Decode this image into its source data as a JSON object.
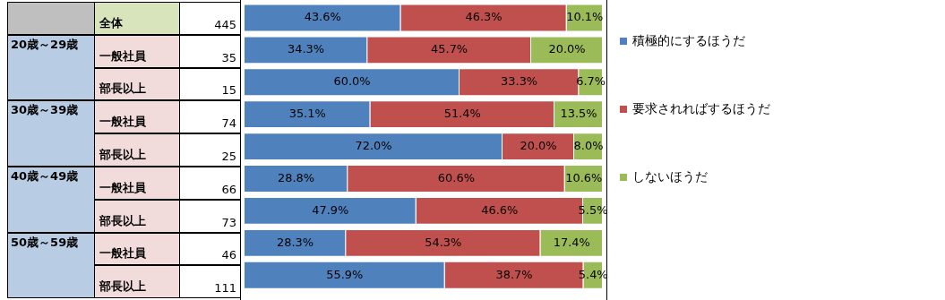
{
  "chart_data": {
    "type": "bar",
    "orientation": "horizontal",
    "stacked": true,
    "xlim": [
      0,
      100
    ],
    "tick_labels": false,
    "grid": false,
    "legend": "right",
    "data_labels": true,
    "categories": [
      "全体",
      "一般社員",
      "部長以上",
      "一般社員",
      "部長以上",
      "一般社員",
      "部長以上",
      "一般社員",
      "部長以上"
    ],
    "series": [
      {
        "name": "積極的にするほうだ",
        "color": "#4f81bd",
        "values": [
          43.6,
          34.3,
          60.0,
          35.1,
          72.0,
          28.8,
          47.9,
          28.3,
          55.9
        ],
        "value_labels": [
          "43.6%",
          "34.3%",
          "60.0%",
          "35.1%",
          "72.0%",
          "28.8%",
          "47.9%",
          "28.3%",
          "55.9%"
        ]
      },
      {
        "name": "要求されればするほうだ",
        "color": "#c0504d",
        "values": [
          46.3,
          45.7,
          33.3,
          51.4,
          20.0,
          60.6,
          46.6,
          54.3,
          38.7
        ],
        "value_labels": [
          "46.3%",
          "45.7%",
          "33.3%",
          "51.4%",
          "20.0%",
          "60.6%",
          "46.6%",
          "54.3%",
          "38.7%"
        ]
      },
      {
        "name": "しないほうだ",
        "color": "#9bbb59",
        "values": [
          10.1,
          20.0,
          6.7,
          13.5,
          8.0,
          10.6,
          5.5,
          17.4,
          5.4
        ],
        "value_labels": [
          "10.1%",
          "20.0%",
          "6.7%",
          "13.5%",
          "8.0%",
          "10.6%",
          "5.5%",
          "17.4%",
          "5.4%"
        ]
      }
    ],
    "annotations": [
      "20歳～29歳",
      "30歳～39歳",
      "40歳～49歳",
      "50歳～59歳",
      "445",
      "35",
      "15",
      "74",
      "25",
      "66",
      "73",
      "46",
      "111"
    ]
  }
}
